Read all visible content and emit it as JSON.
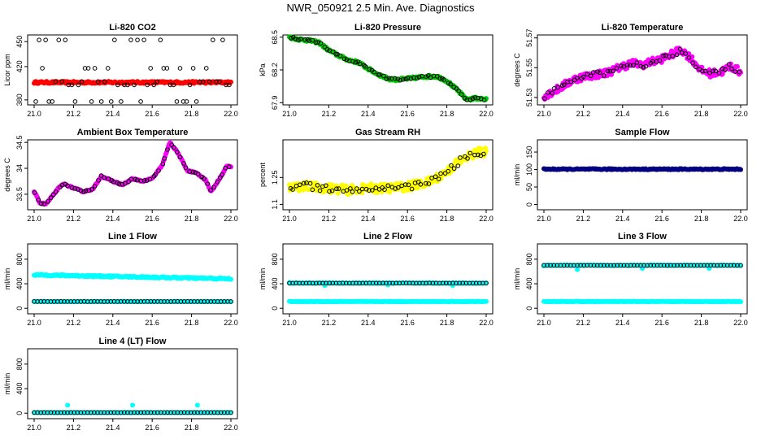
{
  "title": "NWR_050921  2.5 Min. Ave. Diagnostics",
  "colors": {
    "red": "#ff0000",
    "green": "#00cc00",
    "magenta": "#ff00ff",
    "yellow": "#ffff00",
    "navy": "#000080",
    "cyan": "#00ffff",
    "black": "#000000"
  },
  "chart_data": [
    {
      "id": "co2",
      "type": "scatter",
      "title": "Li-820 CO2",
      "ylabel": "Licor ppm",
      "xlim": [
        21.0,
        22.0
      ],
      "xticks": [
        21.0,
        21.2,
        21.4,
        21.6,
        21.8,
        22.0
      ],
      "ylim": [
        374,
        458
      ],
      "yticks": [
        380,
        420,
        450
      ],
      "series": [
        {
          "name": "continuous",
          "color": "#ff0000",
          "pattern": "band",
          "center": 401,
          "spread": 1.2
        },
        {
          "name": "samples",
          "color": "#000000",
          "pattern": "discrete",
          "levels": [
            378,
            398,
            402,
            418,
            452
          ]
        }
      ]
    },
    {
      "id": "pressure",
      "type": "scatter",
      "title": "Li-820 Pressure",
      "ylabel": "kPa",
      "xlim": [
        21.0,
        22.0
      ],
      "xticks": [
        21.0,
        21.2,
        21.4,
        21.6,
        21.8,
        22.0
      ],
      "ylim": [
        67.88,
        68.52
      ],
      "yticks": [
        67.9,
        68.2,
        68.5
      ],
      "series": [
        {
          "name": "continuous",
          "color": "#00cc00",
          "pattern": "curve",
          "spread": 0.012,
          "x": [
            21.0,
            21.05,
            21.1,
            21.15,
            21.2,
            21.25,
            21.3,
            21.35,
            21.4,
            21.45,
            21.5,
            21.55,
            21.6,
            21.65,
            21.7,
            21.75,
            21.8,
            21.85,
            21.9,
            21.95,
            22.0
          ],
          "y": [
            68.5,
            68.48,
            68.47,
            68.45,
            68.38,
            68.33,
            68.29,
            68.27,
            68.21,
            68.16,
            68.12,
            68.11,
            68.12,
            68.13,
            68.14,
            68.14,
            68.1,
            68.02,
            67.93,
            67.94,
            67.93
          ]
        },
        {
          "name": "samples",
          "color": "#000000",
          "pattern": "follow",
          "count": 70
        }
      ]
    },
    {
      "id": "temp",
      "type": "scatter",
      "title": "Li-820 Temperature",
      "ylabel": "degrees C",
      "xlim": [
        21.0,
        22.0
      ],
      "xticks": [
        21.0,
        21.2,
        21.4,
        21.6,
        21.8,
        22.0
      ],
      "ylim": [
        51.525,
        51.572
      ],
      "yticks": [
        51.53,
        51.55,
        51.57
      ],
      "series": [
        {
          "name": "continuous",
          "color": "#ff00ff",
          "pattern": "curve",
          "spread": 0.0025,
          "x": [
            21.0,
            21.05,
            21.1,
            21.15,
            21.2,
            21.25,
            21.3,
            21.35,
            21.4,
            21.45,
            21.5,
            21.55,
            21.6,
            21.65,
            21.7,
            21.75,
            21.8,
            21.85,
            21.9,
            21.95,
            22.0
          ],
          "y": [
            51.531,
            51.534,
            51.538,
            51.542,
            51.544,
            51.545,
            51.546,
            51.548,
            51.551,
            51.553,
            51.552,
            51.554,
            51.556,
            51.559,
            51.562,
            51.556,
            51.548,
            51.546,
            51.547,
            51.551,
            51.547
          ]
        },
        {
          "name": "samples",
          "color": "#000000",
          "pattern": "follow",
          "count": 60
        }
      ]
    },
    {
      "id": "ambient",
      "type": "scatter",
      "title": "Ambient Box Temperature",
      "ylabel": "degrees C",
      "xlim": [
        21.0,
        22.0
      ],
      "xticks": [
        21.0,
        21.2,
        21.4,
        21.6,
        21.8,
        22.0
      ],
      "ylim": [
        33.2,
        34.55
      ],
      "yticks": [
        33.5,
        34.0,
        34.5
      ],
      "series": [
        {
          "name": "continuous",
          "color": "#ff00ff",
          "pattern": "curve",
          "spread": 0.012,
          "x": [
            21.0,
            21.03,
            21.06,
            21.09,
            21.12,
            21.15,
            21.2,
            21.25,
            21.3,
            21.34,
            21.4,
            21.45,
            21.5,
            21.55,
            21.6,
            21.65,
            21.69,
            21.73,
            21.78,
            21.82,
            21.87,
            21.9,
            21.95,
            21.98,
            22.0
          ],
          "y": [
            33.55,
            33.33,
            33.31,
            33.45,
            33.6,
            33.7,
            33.62,
            33.55,
            33.6,
            33.85,
            33.75,
            33.68,
            33.8,
            33.75,
            33.8,
            34.05,
            34.5,
            34.3,
            33.95,
            33.92,
            33.78,
            33.55,
            33.85,
            34.05,
            34.02
          ]
        },
        {
          "name": "samples",
          "color": "#000000",
          "pattern": "follow",
          "count": 65
        }
      ]
    },
    {
      "id": "rh",
      "type": "scatter",
      "title": "Gas Stream RH",
      "ylabel": "percent",
      "xlim": [
        21.0,
        22.0
      ],
      "xticks": [
        21.0,
        21.2,
        21.4,
        21.6,
        21.8,
        22.0
      ],
      "ylim": [
        1.07,
        1.46
      ],
      "yticks": [
        1.1,
        1.25
      ],
      "series": [
        {
          "name": "continuous",
          "color": "#ffff00",
          "pattern": "curve",
          "spread": 0.025,
          "x": [
            21.0,
            21.1,
            21.2,
            21.3,
            21.4,
            21.5,
            21.6,
            21.7,
            21.8,
            21.85,
            21.9,
            21.95,
            22.0
          ],
          "y": [
            1.2,
            1.2,
            1.19,
            1.18,
            1.19,
            1.19,
            1.2,
            1.22,
            1.28,
            1.33,
            1.36,
            1.39,
            1.39
          ]
        },
        {
          "name": "samples",
          "color": "#000000",
          "pattern": "follow",
          "count": 60
        }
      ]
    },
    {
      "id": "sample_flow",
      "type": "scatter",
      "title": "Sample Flow",
      "ylabel": "ml/min",
      "xlim": [
        21.0,
        22.0
      ],
      "xticks": [
        21.0,
        21.2,
        21.4,
        21.6,
        21.8,
        22.0
      ],
      "ylim": [
        -15,
        185
      ],
      "yticks": [
        0,
        50,
        100,
        150
      ],
      "series": [
        {
          "name": "continuous",
          "color": "#000080",
          "pattern": "band",
          "center": 101,
          "spread": 1.5
        }
      ]
    },
    {
      "id": "line1",
      "type": "scatter",
      "title": "Line 1 Flow",
      "ylabel": "ml/min",
      "xlim": [
        21.0,
        22.0
      ],
      "xticks": [
        21.0,
        21.2,
        21.4,
        21.6,
        21.8,
        22.0
      ],
      "ylim": [
        -90,
        1050
      ],
      "yticks": [
        0,
        400,
        800
      ],
      "series": [
        {
          "name": "active",
          "color": "#00ffff",
          "pattern": "curve",
          "spread": 12,
          "x": [
            21.0,
            22.0
          ],
          "y": [
            545,
            480
          ]
        },
        {
          "name": "idle",
          "color": "#00ffff",
          "pattern": "band",
          "center": 110,
          "spread": 3
        },
        {
          "name": "samples",
          "color": "#000000",
          "pattern": "band",
          "center": 110,
          "spread": 1,
          "open": true
        }
      ]
    },
    {
      "id": "line2",
      "type": "scatter",
      "title": "Line 2 Flow",
      "ylabel": "ml/min",
      "xlim": [
        21.0,
        22.0
      ],
      "xticks": [
        21.0,
        21.2,
        21.4,
        21.6,
        21.8,
        22.0
      ],
      "ylim": [
        -90,
        1050
      ],
      "yticks": [
        0,
        400,
        800
      ],
      "series": [
        {
          "name": "idle",
          "color": "#00ffff",
          "pattern": "band",
          "center": 110,
          "spread": 4
        },
        {
          "name": "active",
          "color": "#00ffff",
          "pattern": "band",
          "center": 410,
          "spread": 5,
          "outliers": [
            [
              21.0,
              420
            ],
            [
              21.18,
              370
            ],
            [
              21.5,
              380
            ],
            [
              21.83,
              370
            ]
          ]
        },
        {
          "name": "samples",
          "color": "#000000",
          "pattern": "band",
          "center": 410,
          "spread": 1,
          "open": true
        }
      ]
    },
    {
      "id": "line3",
      "type": "scatter",
      "title": "Line 3 Flow",
      "ylabel": "ml/min",
      "xlim": [
        21.0,
        22.0
      ],
      "xticks": [
        21.0,
        21.2,
        21.4,
        21.6,
        21.8,
        22.0
      ],
      "ylim": [
        -90,
        1050
      ],
      "yticks": [
        0,
        400,
        800
      ],
      "series": [
        {
          "name": "idle",
          "color": "#00ffff",
          "pattern": "band",
          "center": 110,
          "spread": 4
        },
        {
          "name": "active",
          "color": "#00ffff",
          "pattern": "band",
          "center": 700,
          "spread": 5,
          "outliers": [
            [
              21.0,
              690
            ],
            [
              21.17,
              630
            ],
            [
              21.5,
              650
            ],
            [
              21.84,
              650
            ]
          ]
        },
        {
          "name": "samples",
          "color": "#000000",
          "pattern": "band",
          "center": 700,
          "spread": 1,
          "open": true
        }
      ]
    },
    {
      "id": "line4",
      "type": "scatter",
      "title": "Line 4 (LT) Flow",
      "ylabel": "ml/min",
      "xlim": [
        21.0,
        22.0
      ],
      "xticks": [
        21.0,
        21.2,
        21.4,
        21.6,
        21.8,
        22.0
      ],
      "ylim": [
        -90,
        1050
      ],
      "yticks": [
        0,
        400,
        800
      ],
      "series": [
        {
          "name": "idle",
          "color": "#00ffff",
          "pattern": "band",
          "center": 10,
          "spread": 2,
          "outliers": [
            [
              21.17,
              130
            ],
            [
              21.5,
              130
            ],
            [
              21.83,
              130
            ]
          ]
        },
        {
          "name": "samples",
          "color": "#000000",
          "pattern": "band",
          "center": 10,
          "spread": 1,
          "open": true
        }
      ]
    }
  ]
}
